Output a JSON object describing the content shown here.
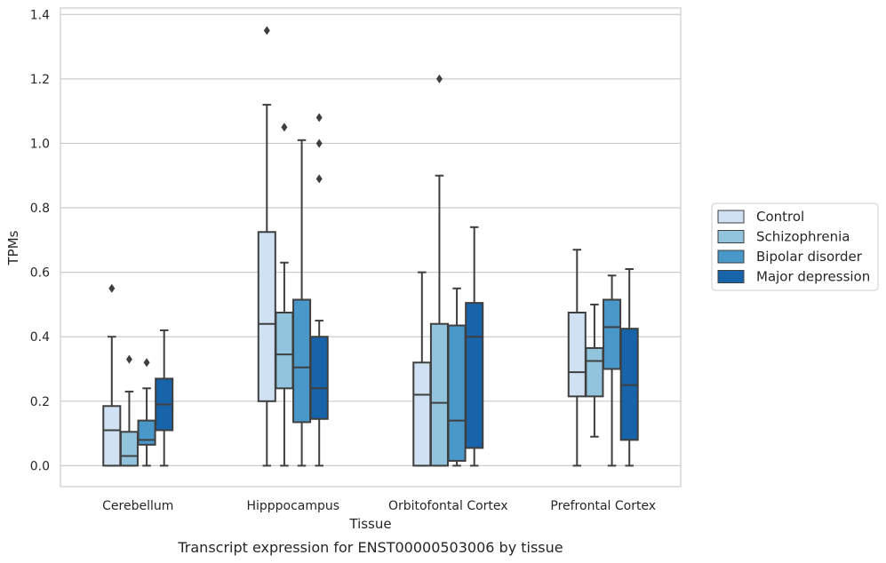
{
  "chart_data": {
    "type": "box",
    "caption": "Transcript expression for ENST00000503006 by tissue",
    "xlabel": "Tissue",
    "ylabel": "TPMs",
    "ylim": [
      -0.065,
      1.42
    ],
    "yticks": [
      0.0,
      0.2,
      0.4,
      0.6,
      0.8,
      1.0,
      1.2,
      1.4
    ],
    "ytick_labels": [
      "0.0",
      "0.2",
      "0.4",
      "0.6",
      "0.8",
      "1.0",
      "1.2",
      "1.4"
    ],
    "grid": "horizontal",
    "legend_position": "right",
    "categories": [
      "Cerebellum",
      "Hipppocampus",
      "Orbitofontal Cortex",
      "Prefrontal Cortex"
    ],
    "series": [
      {
        "name": "Control",
        "color": "#cfe1f2",
        "boxes": [
          {
            "whisker_low": 0.0,
            "q1": 0.0,
            "median": 0.11,
            "q3": 0.185,
            "whisker_high": 0.4,
            "outliers": [
              0.55
            ]
          },
          {
            "whisker_low": 0.0,
            "q1": 0.2,
            "median": 0.44,
            "q3": 0.725,
            "whisker_high": 1.12,
            "outliers": [
              1.35
            ]
          },
          {
            "whisker_low": 0.0,
            "q1": 0.0,
            "median": 0.22,
            "q3": 0.32,
            "whisker_high": 0.6,
            "outliers": []
          },
          {
            "whisker_low": 0.0,
            "q1": 0.215,
            "median": 0.29,
            "q3": 0.475,
            "whisker_high": 0.67,
            "outliers": []
          }
        ]
      },
      {
        "name": "Schizophrenia",
        "color": "#93c4de",
        "boxes": [
          {
            "whisker_low": 0.0,
            "q1": 0.0,
            "median": 0.03,
            "q3": 0.105,
            "whisker_high": 0.23,
            "outliers": [
              0.33
            ]
          },
          {
            "whisker_low": 0.0,
            "q1": 0.24,
            "median": 0.345,
            "q3": 0.475,
            "whisker_high": 0.63,
            "outliers": [
              1.05
            ]
          },
          {
            "whisker_low": 0.0,
            "q1": 0.0,
            "median": 0.195,
            "q3": 0.44,
            "whisker_high": 0.9,
            "outliers": [
              1.2
            ]
          },
          {
            "whisker_low": 0.09,
            "q1": 0.215,
            "median": 0.325,
            "q3": 0.365,
            "whisker_high": 0.5,
            "outliers": []
          }
        ]
      },
      {
        "name": "Bipolar disorder",
        "color": "#4a98c9",
        "boxes": [
          {
            "whisker_low": 0.0,
            "q1": 0.065,
            "median": 0.08,
            "q3": 0.14,
            "whisker_high": 0.24,
            "outliers": [
              0.32
            ]
          },
          {
            "whisker_low": 0.0,
            "q1": 0.135,
            "median": 0.305,
            "q3": 0.515,
            "whisker_high": 1.01,
            "outliers": []
          },
          {
            "whisker_low": 0.0,
            "q1": 0.015,
            "median": 0.14,
            "q3": 0.435,
            "whisker_high": 0.55,
            "outliers": []
          },
          {
            "whisker_low": 0.0,
            "q1": 0.3,
            "median": 0.43,
            "q3": 0.515,
            "whisker_high": 0.59,
            "outliers": []
          }
        ]
      },
      {
        "name": "Major depression",
        "color": "#1764ab",
        "boxes": [
          {
            "whisker_low": 0.0,
            "q1": 0.11,
            "median": 0.19,
            "q3": 0.27,
            "whisker_high": 0.42,
            "outliers": []
          },
          {
            "whisker_low": 0.0,
            "q1": 0.145,
            "median": 0.24,
            "q3": 0.4,
            "whisker_high": 0.45,
            "outliers": [
              0.89,
              1.0,
              1.08
            ]
          },
          {
            "whisker_low": 0.0,
            "q1": 0.055,
            "median": 0.4,
            "q3": 0.505,
            "whisker_high": 0.74,
            "outliers": []
          },
          {
            "whisker_low": 0.0,
            "q1": 0.08,
            "median": 0.25,
            "q3": 0.425,
            "whisker_high": 0.61,
            "outliers": []
          }
        ]
      }
    ]
  }
}
